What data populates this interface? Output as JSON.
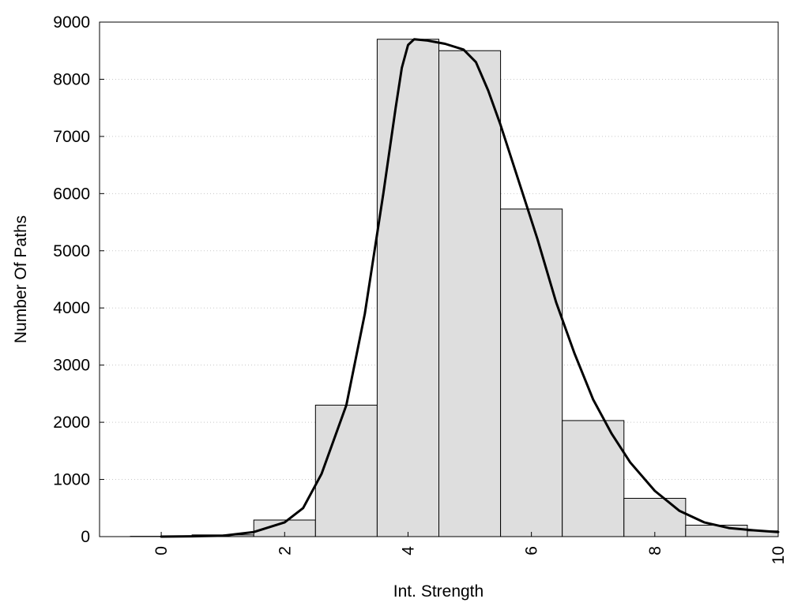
{
  "chart_data": {
    "type": "bar",
    "title": "",
    "xlabel": "Int. Strength",
    "ylabel": "Number Of Paths",
    "xlim": [
      -1,
      10
    ],
    "ylim": [
      0,
      9000
    ],
    "grid": "horizontal dotted",
    "legend": "none",
    "bar_width": 1,
    "bins": [
      {
        "x": 0,
        "value": 5
      },
      {
        "x": 1,
        "value": 30
      },
      {
        "x": 2,
        "value": 290
      },
      {
        "x": 3,
        "value": 2300
      },
      {
        "x": 4,
        "value": 8700
      },
      {
        "x": 5,
        "value": 8500
      },
      {
        "x": 6,
        "value": 5730
      },
      {
        "x": 7,
        "value": 2030
      },
      {
        "x": 8,
        "value": 670
      },
      {
        "x": 9,
        "value": 200
      },
      {
        "x": 10,
        "value": 100
      }
    ],
    "curve": {
      "x": [
        0,
        0.5,
        1,
        1.5,
        2,
        2.3,
        2.6,
        3,
        3.3,
        3.6,
        3.8,
        3.9,
        4,
        4.1,
        4.3,
        4.6,
        4.9,
        5.1,
        5.3,
        5.5,
        5.8,
        6.1,
        6.4,
        6.7,
        7,
        7.3,
        7.6,
        8,
        8.4,
        8.8,
        9.2,
        9.6,
        10
      ],
      "y": [
        0,
        5,
        15,
        80,
        250,
        500,
        1100,
        2300,
        3900,
        6000,
        7500,
        8200,
        8600,
        8700,
        8680,
        8620,
        8520,
        8300,
        7800,
        7200,
        6200,
        5200,
        4100,
        3200,
        2400,
        1800,
        1300,
        800,
        450,
        250,
        150,
        110,
        80
      ]
    },
    "x_ticks": [
      "0",
      "2",
      "4",
      "6",
      "8",
      "10"
    ],
    "y_ticks": [
      "0",
      "1000",
      "2000",
      "3000",
      "4000",
      "5000",
      "6000",
      "7000",
      "8000",
      "9000"
    ],
    "colors": {
      "bar_fill": "#dedede",
      "bar_stroke": "#000000",
      "curve": "#000000",
      "grid": "#c8c8c8"
    }
  }
}
